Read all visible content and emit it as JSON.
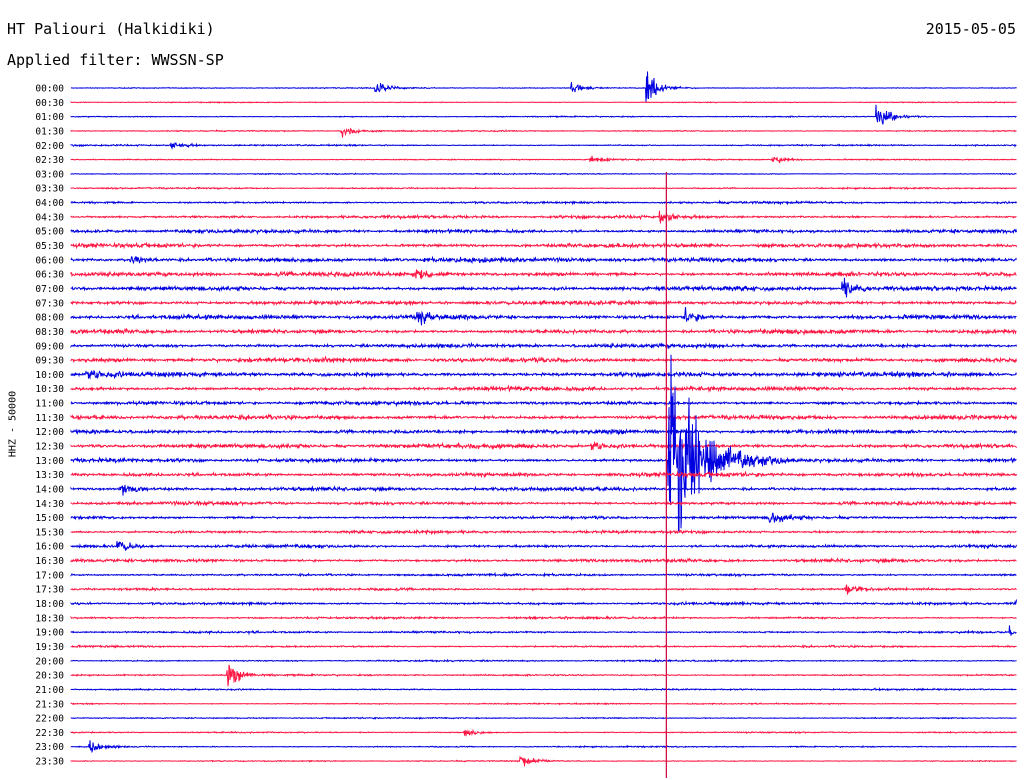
{
  "header": {
    "station": "HT Paliouri (Halkidiki)",
    "date": "2015-05-05",
    "filter": "Applied filter: WWSSN-SP",
    "channel": "HHZ - 50000"
  },
  "colors": {
    "trace_a": "#0000e0",
    "trace_b": "#ff1744",
    "marker": "#d0003c"
  },
  "chart_data": {
    "type": "line",
    "title": "HT Paliouri (Halkidiki)",
    "subtitle": "Applied filter: WWSSN-SP",
    "ylabel": "HHZ - 50000",
    "xlabel": "",
    "date": "2015-05-05",
    "rows": [
      "00:00",
      "00:30",
      "01:00",
      "01:30",
      "02:00",
      "02:30",
      "03:00",
      "03:30",
      "04:00",
      "04:30",
      "05:00",
      "05:30",
      "06:00",
      "06:30",
      "07:00",
      "07:30",
      "08:00",
      "08:30",
      "09:00",
      "09:30",
      "10:00",
      "10:30",
      "11:00",
      "11:30",
      "12:00",
      "12:30",
      "13:00",
      "13:30",
      "14:00",
      "14:30",
      "15:00",
      "15:30",
      "16:00",
      "16:30",
      "17:00",
      "17:30",
      "18:00",
      "18:30",
      "19:00",
      "19:30",
      "20:00",
      "20:30",
      "21:00",
      "21:30",
      "22:00",
      "22:30",
      "23:00",
      "23:30"
    ],
    "row_minutes": 30,
    "series_colors": [
      "blue",
      "red"
    ],
    "noise": [
      0.5,
      0.5,
      0.6,
      0.7,
      0.8,
      0.7,
      0.6,
      0.8,
      1.2,
      1.6,
      2.0,
      2.2,
      2.5,
      2.4,
      2.4,
      2.3,
      2.4,
      2.3,
      2.2,
      2.4,
      2.5,
      2.2,
      2.0,
      2.4,
      2.2,
      2.4,
      2.0,
      2.2,
      2.0,
      1.8,
      1.5,
      1.6,
      1.6,
      1.8,
      1.3,
      1.2,
      1.4,
      1.2,
      1.1,
      1.0,
      0.9,
      0.9,
      0.8,
      0.7,
      0.7,
      0.7,
      0.7,
      0.6
    ],
    "events": [
      {
        "row": "00:00",
        "minute": 9.7,
        "amplitude": 8
      },
      {
        "row": "00:00",
        "minute": 15.9,
        "amplitude": 8
      },
      {
        "row": "00:00",
        "minute": 18.3,
        "amplitude": 22
      },
      {
        "row": "01:00",
        "minute": 25.6,
        "amplitude": 20
      },
      {
        "row": "01:30",
        "minute": 8.6,
        "amplitude": 8
      },
      {
        "row": "02:00",
        "minute": 3.2,
        "amplitude": 6
      },
      {
        "row": "02:30",
        "minute": 16.5,
        "amplitude": 5
      },
      {
        "row": "02:30",
        "minute": 22.3,
        "amplitude": 6
      },
      {
        "row": "04:30",
        "minute": 18.7,
        "amplitude": 8
      },
      {
        "row": "06:00",
        "minute": 1.9,
        "amplitude": 8
      },
      {
        "row": "06:30",
        "minute": 11.0,
        "amplitude": 8
      },
      {
        "row": "07:00",
        "minute": 24.5,
        "amplitude": 16
      },
      {
        "row": "08:00",
        "minute": 11.0,
        "amplitude": 10
      },
      {
        "row": "08:00",
        "minute": 19.5,
        "amplitude": 10
      },
      {
        "row": "10:00",
        "minute": 0.5,
        "amplitude": 8
      },
      {
        "row": "12:30",
        "minute": 16.5,
        "amplitude": 8
      },
      {
        "row": "13:00",
        "minute": 19.0,
        "amplitude": 150
      },
      {
        "row": "14:00",
        "minute": 1.6,
        "amplitude": 10
      },
      {
        "row": "15:00",
        "minute": 22.2,
        "amplitude": 10
      },
      {
        "row": "16:00",
        "minute": 1.5,
        "amplitude": 10
      },
      {
        "row": "17:30",
        "minute": 24.6,
        "amplitude": 8
      },
      {
        "row": "18:00",
        "minute": 30.0,
        "amplitude": 8
      },
      {
        "row": "19:00",
        "minute": 29.8,
        "amplitude": 8
      },
      {
        "row": "20:30",
        "minute": 5.0,
        "amplitude": 16
      },
      {
        "row": "22:30",
        "minute": 12.5,
        "amplitude": 5
      },
      {
        "row": "23:00",
        "minute": 0.6,
        "amplitude": 10
      },
      {
        "row": "23:30",
        "minute": 14.3,
        "amplitude": 8
      }
    ],
    "marker_minute": 18.9
  }
}
